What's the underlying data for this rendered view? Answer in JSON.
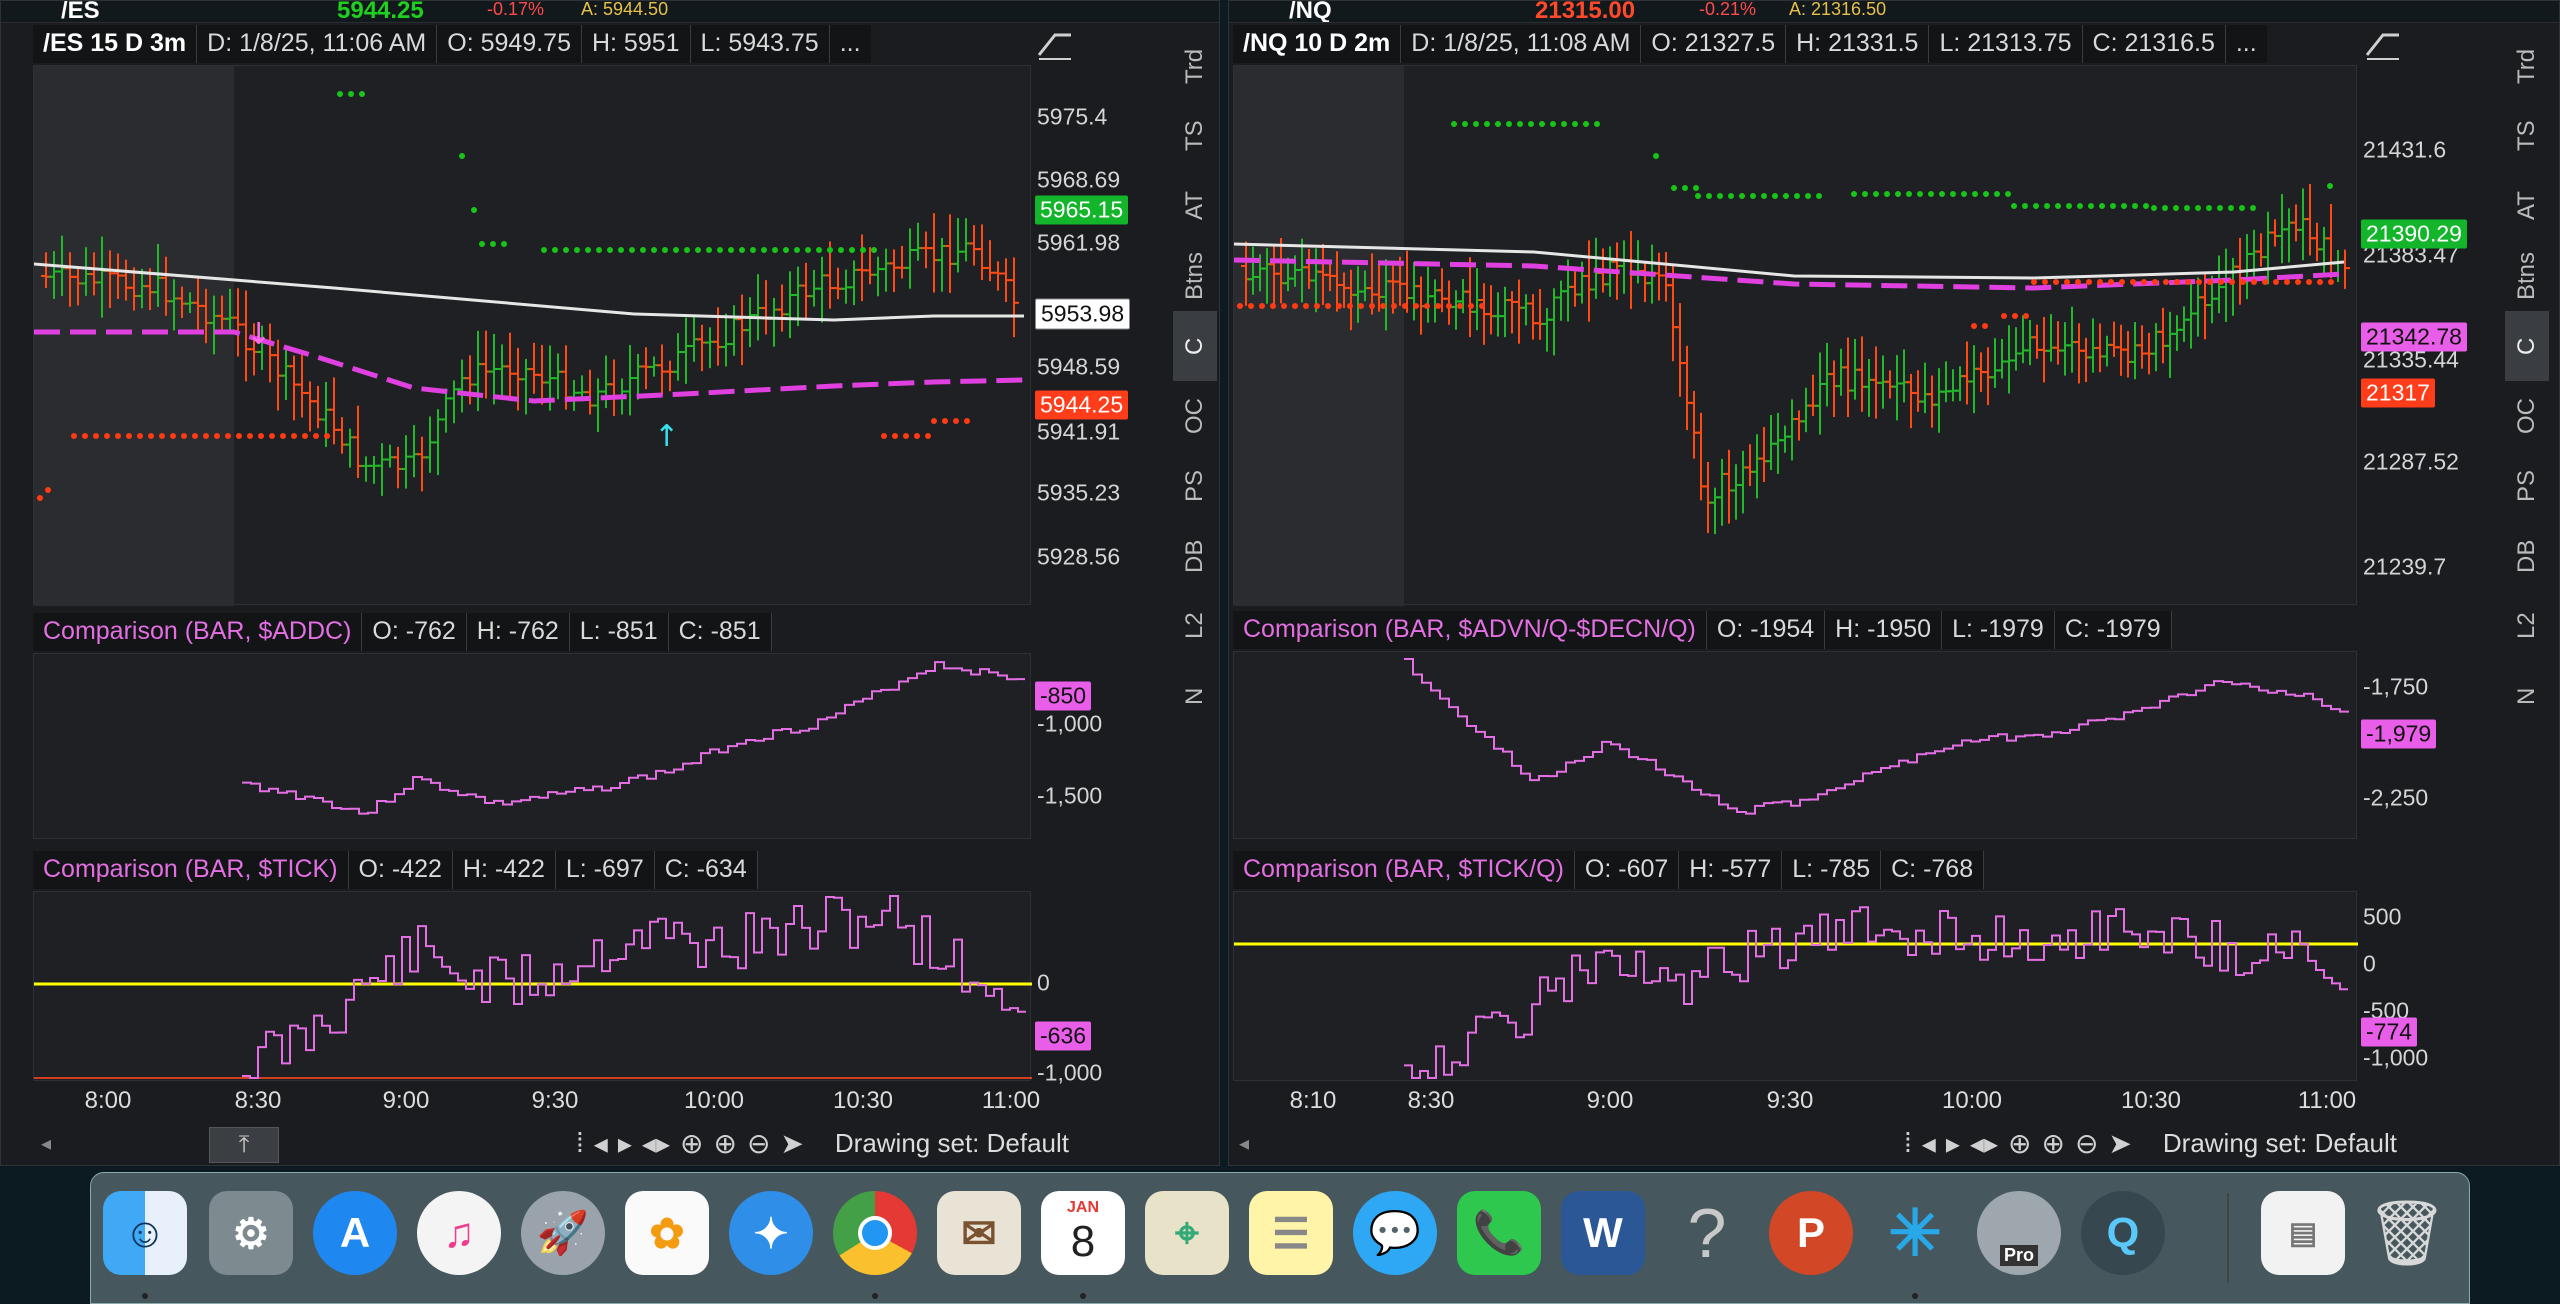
{
  "left_window": {
    "top_strip": {
      "symbol": "/ES",
      "price": "5944.25",
      "change": "-0.17%",
      "ask": "A: 5944.50"
    },
    "header": {
      "symbol": "/ES 15 D 3m",
      "date": "D: 1/8/25, 11:06 AM",
      "open": "O: 5949.75",
      "high": "H: 5951",
      "low": "L: 5943.75",
      "more": "..."
    },
    "price_axis": [
      "5975.4",
      "5968.69",
      "5961.98",
      "5948.59",
      "5941.91",
      "5935.23",
      "5928.56"
    ],
    "price_tags": {
      "green": "5965.15",
      "white": "5953.98",
      "red": "5944.25"
    },
    "study1": {
      "title": "Comparison (BAR, $ADDC)",
      "open": "O: -762",
      "high": "H: -762",
      "low": "L: -851",
      "close": "C: -851",
      "axis": [
        "-1,000",
        "-1,500"
      ],
      "tag": "-850"
    },
    "study2": {
      "title": "Comparison (BAR, $TICK)",
      "open": "O: -422",
      "high": "H: -422",
      "low": "L: -697",
      "close": "C: -634",
      "axis": [
        "0",
        "-1,000"
      ],
      "tag": "-636"
    },
    "time_axis": [
      "8:00",
      "8:30",
      "9:00",
      "9:30",
      "10:00",
      "10:30",
      "11:00"
    ],
    "drawing_set": "Drawing set: Default",
    "side_tabs": [
      "Trd",
      "TS",
      "AT",
      "Btns",
      "C",
      "OC",
      "PS",
      "DB",
      "L2",
      "N"
    ]
  },
  "right_window": {
    "top_strip": {
      "symbol": "/NQ",
      "price": "21315.00",
      "change": "-0.21%",
      "ask": "A: 21316.50"
    },
    "header": {
      "symbol": "/NQ 10 D 2m",
      "date": "D: 1/8/25, 11:08 AM",
      "open": "O: 21327.5",
      "high": "H: 21331.5",
      "low": "L: 21313.75",
      "close": "C: 21316.5",
      "more": "..."
    },
    "price_axis": [
      "21431.6",
      "21383.47",
      "21335.44",
      "21287.52",
      "21239.7"
    ],
    "price_tags": {
      "green": "21390.29",
      "magenta": "21342.78",
      "red": "21317"
    },
    "study1": {
      "title": "Comparison (BAR, $ADVN/Q-$DECN/Q)",
      "open": "O: -1954",
      "high": "H: -1950",
      "low": "L: -1979",
      "close": "C: -1979",
      "axis": [
        "-1,750",
        "-2,250"
      ],
      "tag": "-1,979"
    },
    "study2": {
      "title": "Comparison (BAR, $TICK/Q)",
      "open": "O: -607",
      "high": "H: -577",
      "low": "L: -785",
      "close": "C: -768",
      "axis": [
        "500",
        "0",
        "-500",
        "-1,000"
      ],
      "tag": "-774"
    },
    "time_axis": [
      "8:10",
      "8:30",
      "9:00",
      "9:30",
      "10:00",
      "10:30",
      "11:00"
    ],
    "drawing_set": "Drawing set: Default",
    "side_tabs": [
      "Trd",
      "TS",
      "AT",
      "Btns",
      "C",
      "OC",
      "PS",
      "DB",
      "L2",
      "N"
    ]
  },
  "dock": {
    "calendar_month": "JAN",
    "calendar_day": "8",
    "powerpoint_letter": "P",
    "word_letter": "W",
    "help_glyph": "?",
    "pro_label": "Pro",
    "items": [
      "finder",
      "system-preferences",
      "app-store",
      "itunes",
      "launchpad",
      "photos",
      "safari",
      "chrome",
      "mail",
      "calendar",
      "maps",
      "notes",
      "messages",
      "facetime",
      "word",
      "help",
      "powerpoint",
      "sparkle-app",
      "google-earth-pro",
      "quicktime",
      "preview-document",
      "trash"
    ]
  },
  "colors": {
    "bar_up": "#22b82a",
    "bar_down": "#ff4a14",
    "ma_dash": "#e040e0",
    "ma_white": "#e6e6e6",
    "study_line": "#e46fe4",
    "zero_line": "#ffff00",
    "stop_dots_green": "#18c418",
    "stop_dots_red": "#ff3b14"
  }
}
